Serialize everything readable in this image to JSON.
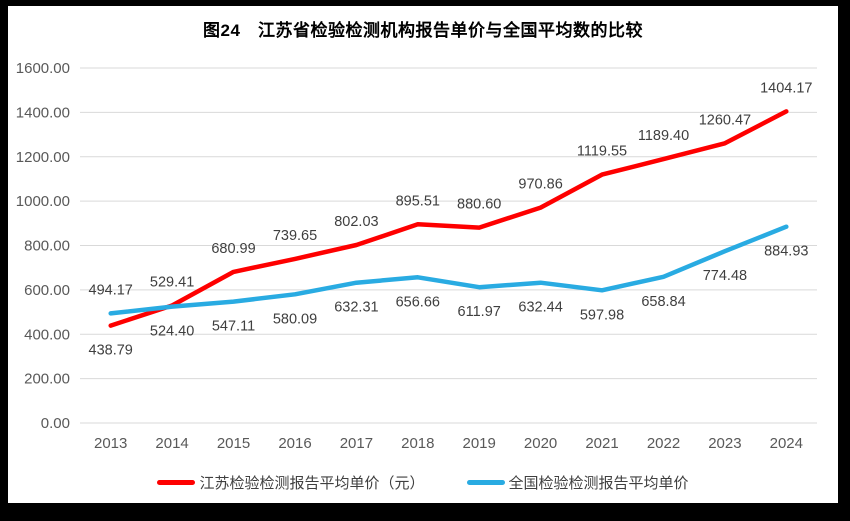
{
  "title": "图24　江苏省检验检测机构报告单价与全国平均数的比较",
  "chart_data": {
    "type": "line",
    "title": "图24　江苏省检验检测机构报告单价与全国平均数的比较",
    "categories": [
      "2013",
      "2014",
      "2015",
      "2016",
      "2017",
      "2018",
      "2019",
      "2020",
      "2021",
      "2022",
      "2023",
      "2024"
    ],
    "series": [
      {
        "name": "江苏检验检测报告平均单价（元）",
        "color": "#fe0000",
        "values": [
          438.79,
          529.41,
          680.99,
          739.65,
          802.03,
          895.51,
          880.6,
          970.86,
          1119.55,
          1189.4,
          1260.47,
          1404.17
        ],
        "label_side": "above",
        "label_side_first_point": "below"
      },
      {
        "name": "全国检验检测报告平均单价",
        "color": "#29abe2",
        "values": [
          494.17,
          524.4,
          547.11,
          580.09,
          632.31,
          656.66,
          611.97,
          632.44,
          597.98,
          658.84,
          774.48,
          884.93
        ],
        "label_side": "below",
        "label_side_first_point": "above"
      }
    ],
    "ylim": [
      0,
      1600
    ],
    "ytick_step": 200,
    "ytick_labels": [
      "0.00",
      "200.00",
      "400.00",
      "600.00",
      "800.00",
      "1000.00",
      "1200.00",
      "1400.00",
      "1600.00"
    ],
    "xlabel": "",
    "ylabel": "",
    "grid": true,
    "grid_color": "#d9d9d9",
    "tick_color": "#595959",
    "data_label_color": "#3f3f3f",
    "legend_position": "bottom",
    "frame_border_color": "#000000",
    "background_color": "#ffffff"
  }
}
